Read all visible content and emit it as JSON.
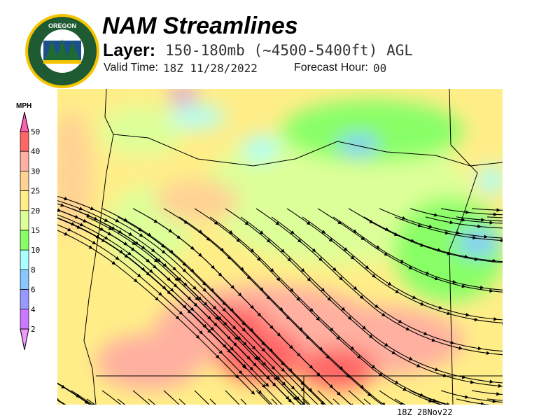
{
  "header": {
    "title": "NAM Streamlines",
    "layer_label": "Layer:",
    "layer_value": "150-180mb (~4500-5400ft) AGL",
    "valid_label": "Valid Time:",
    "valid_value": "18Z 11/28/2022",
    "forecast_label": "Forecast Hour:",
    "forecast_value": "00"
  },
  "logo": {
    "text_top": "OREGON",
    "text_bottom": "DEPARTMENT OF FORESTRY"
  },
  "legend": {
    "unit": "MPH",
    "bins": [
      {
        "label": "50",
        "color": "#ff5fb4"
      },
      {
        "label": "40",
        "color": "#ff6666"
      },
      {
        "label": "30",
        "color": "#ffb0a0"
      },
      {
        "label": "25",
        "color": "#ffd294"
      },
      {
        "label": "20",
        "color": "#ffee88"
      },
      {
        "label": "15",
        "color": "#ddff99"
      },
      {
        "label": "10",
        "color": "#88ff66"
      },
      {
        "label": "8",
        "color": "#aaffff"
      },
      {
        "label": "6",
        "color": "#88c8ff"
      },
      {
        "label": "4",
        "color": "#9999ff"
      },
      {
        "label": "2",
        "color": "#cc77ff"
      }
    ],
    "below_color": "#ee99ff"
  },
  "map": {
    "timestamp": "18Z 28Nov22"
  }
}
